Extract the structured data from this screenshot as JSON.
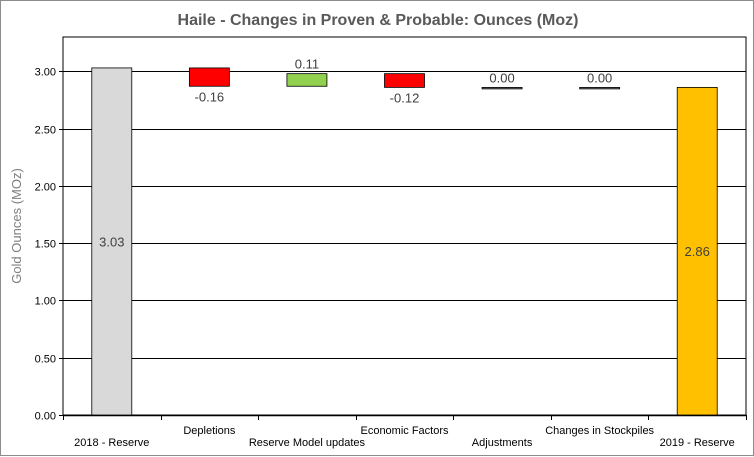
{
  "chart_data": {
    "type": "bar",
    "subtype": "waterfall",
    "title": "Haile - Changes in Proven & Probable: Ounces (Moz)",
    "xlabel": "",
    "ylabel": "Gold Ounces (MOz)",
    "ylim": [
      0,
      3.3
    ],
    "yticks": [
      "0.00",
      "0.50",
      "1.00",
      "1.50",
      "2.00",
      "2.50",
      "3.00"
    ],
    "grid": true,
    "legend": "none",
    "categories": [
      "2018 - Reserve",
      "Depletions",
      "Reserve Model updates",
      "Economic Factors",
      "Adjustments",
      "Changes in Stockpiles",
      "2019 - Reserve"
    ],
    "values": [
      3.03,
      -0.16,
      0.11,
      -0.12,
      0.0,
      0.0,
      2.86
    ],
    "value_labels": [
      "3.03",
      "-0.16",
      "0.11",
      "-0.12",
      "0.00",
      "0.00",
      "2.86"
    ],
    "kinds": [
      "total",
      "delta",
      "delta",
      "delta",
      "delta",
      "delta",
      "total"
    ],
    "colors": {
      "start_total": "#d9d9d9",
      "end_total": "#ffc000",
      "decrease": "#ff0000",
      "increase": "#92d050",
      "zero": "#7f7f7f"
    }
  }
}
